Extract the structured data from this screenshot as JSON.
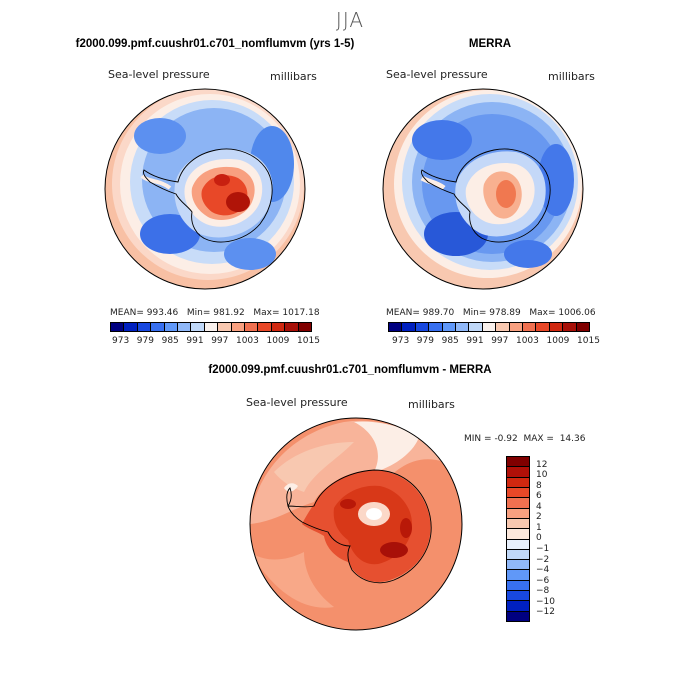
{
  "season": "JJA",
  "panels": {
    "model": {
      "title": "f2000.099.pmf.cuushr01.c701_nomflumvm (yrs 1-5)",
      "variable": "Sea-level pressure",
      "units": "millibars",
      "mean_label": "MEAN=",
      "mean": "993.46",
      "min_label": "Min=",
      "min": "981.92",
      "max_label": "Max=",
      "max": "1017.18"
    },
    "obs": {
      "title": "MERRA",
      "variable": "Sea-level pressure",
      "units": "millibars",
      "mean_label": "MEAN=",
      "mean": "989.70",
      "min_label": "Min=",
      "min": "978.89",
      "max_label": "Max=",
      "max": "1006.06"
    },
    "diff": {
      "title": "f2000.099.pmf.cuushr01.c701_nomflumvm - MERRA",
      "variable": "Sea-level pressure",
      "units": "millibars",
      "min_label": "MIN =",
      "min": "-0.92",
      "max_label": "MAX =",
      "max": "14.36"
    }
  },
  "colorbar_abs": {
    "ticks": [
      "973",
      "979",
      "985",
      "991",
      "997",
      "1003",
      "1009",
      "1015"
    ],
    "colors": [
      "#000080",
      "#0020c0",
      "#1848e0",
      "#3870f0",
      "#6098f8",
      "#90b8f8",
      "#c0d8f8",
      "#f8f0ec",
      "#f8c8b0",
      "#f8a080",
      "#f07050",
      "#e84828",
      "#d02810",
      "#a81008",
      "#800000"
    ]
  },
  "colorbar_diff": {
    "ticks": [
      "12",
      "10",
      "8",
      "6",
      "4",
      "2",
      "1",
      "0",
      "−1",
      "−2",
      "−4",
      "−6",
      "−8",
      "−10",
      "−12"
    ],
    "colors": [
      "#800000",
      "#b01008",
      "#d02810",
      "#e84828",
      "#f07050",
      "#f8a080",
      "#f8c8b0",
      "#fce8dc",
      "#e8f0fc",
      "#c0d8f8",
      "#90b8f8",
      "#6098f8",
      "#3870f0",
      "#1848e0",
      "#0020c0",
      "#000080"
    ]
  },
  "colors": {
    "land_outline": "#000000",
    "season_title": "#555555"
  }
}
